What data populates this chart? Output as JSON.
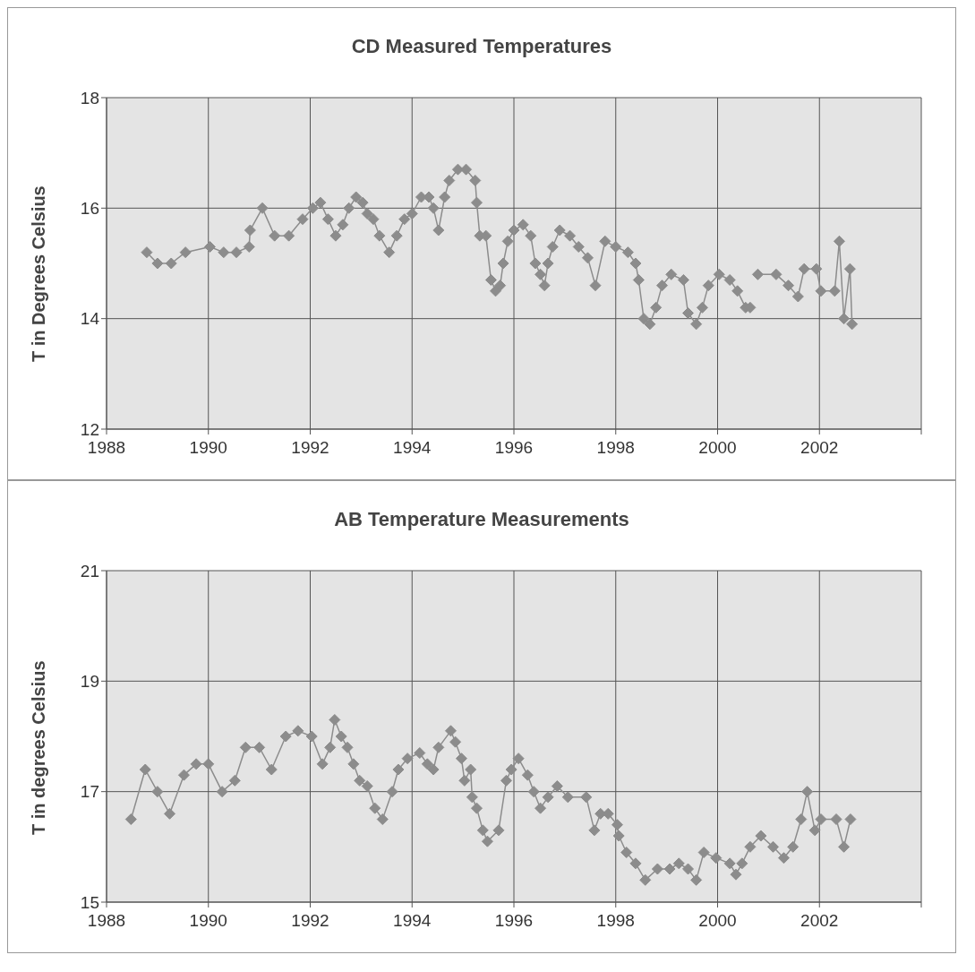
{
  "chart_data": [
    {
      "type": "line",
      "title": "CD Measured Temperatures",
      "ylabel": "T in Degrees Celsius",
      "x": [
        1988.79,
        1989.0,
        1989.27,
        1989.55,
        1990.03,
        1990.3,
        1990.55,
        1990.8,
        1990.82,
        1991.06,
        1991.3,
        1991.58,
        1991.85,
        1992.05,
        1992.2,
        1992.35,
        1992.5,
        1992.64,
        1992.76,
        1992.9,
        1993.03,
        1993.12,
        1993.24,
        1993.36,
        1993.55,
        1993.7,
        1993.85,
        1994.0,
        1994.18,
        1994.33,
        1994.42,
        1994.52,
        1994.64,
        1994.73,
        1994.9,
        1995.06,
        1995.24,
        1995.27,
        1995.33,
        1995.45,
        1995.55,
        1995.64,
        1995.73,
        1995.79,
        1995.88,
        1996.0,
        1996.18,
        1996.33,
        1996.42,
        1996.52,
        1996.6,
        1996.67,
        1996.76,
        1996.9,
        1997.1,
        1997.27,
        1997.45,
        1997.6,
        1997.79,
        1998.0,
        1998.24,
        1998.39,
        1998.45,
        1998.55,
        1998.67,
        1998.79,
        1998.91,
        1999.09,
        1999.33,
        1999.42,
        1999.58,
        1999.7,
        1999.82,
        2000.03,
        2000.24,
        2000.39,
        2000.55,
        2000.64,
        2000.72,
        2000.79,
        2001.15,
        2001.39,
        2001.58,
        2001.7,
        2001.94,
        2002.03,
        2002.3,
        2002.39,
        2002.48,
        2002.6,
        2002.64
      ],
      "series": [
        {
          "color": "#8c8c8c",
          "values": [
            15.2,
            15.0,
            15.0,
            15.2,
            15.3,
            15.2,
            15.2,
            15.3,
            15.6,
            16.0,
            15.5,
            15.5,
            15.8,
            16.0,
            16.1,
            15.8,
            15.5,
            15.7,
            16.0,
            16.2,
            16.1,
            15.9,
            15.8,
            15.5,
            15.2,
            15.5,
            15.8,
            15.9,
            16.2,
            16.2,
            16.0,
            15.6,
            16.2,
            16.5,
            16.7,
            16.7,
            16.5,
            16.1,
            15.5,
            15.5,
            14.7,
            14.5,
            14.6,
            15.0,
            15.4,
            15.6,
            15.7,
            15.5,
            15.0,
            14.8,
            14.6,
            15.0,
            15.3,
            15.6,
            15.5,
            15.3,
            15.1,
            14.6,
            15.4,
            15.3,
            15.2,
            15.0,
            14.7,
            14.0,
            13.9,
            14.2,
            14.6,
            14.8,
            14.7,
            14.1,
            13.9,
            14.2,
            14.6,
            14.8,
            14.7,
            14.5,
            14.2,
            14.2,
            null,
            14.8,
            14.8,
            14.6,
            14.4,
            14.9,
            14.9,
            14.5,
            14.5,
            15.4,
            14.0,
            14.9,
            13.9
          ]
        }
      ],
      "xlim": [
        1988,
        2004
      ],
      "xticks": [
        1988,
        1990,
        1992,
        1994,
        1996,
        1998,
        2000,
        2002,
        {
          "value": 2004,
          "label": null
        }
      ],
      "ylim": [
        12,
        18
      ],
      "yticks": [
        12,
        14,
        16,
        18
      ],
      "grid": true,
      "marker": "diamond",
      "line_style": "solid"
    },
    {
      "type": "line",
      "title": "AB Temperature Measurements",
      "ylabel": "T in degrees Celsius",
      "x": [
        1988.48,
        1988.76,
        1989.0,
        1989.24,
        1989.52,
        1989.76,
        1990.0,
        1990.27,
        1990.52,
        1990.73,
        1991.0,
        1991.24,
        1991.52,
        1991.76,
        1992.03,
        1992.24,
        1992.39,
        1992.48,
        1992.61,
        1992.73,
        1992.85,
        1992.97,
        1993.12,
        1993.27,
        1993.42,
        1993.61,
        1993.73,
        1993.91,
        1994.15,
        1994.3,
        1994.42,
        1994.52,
        1994.76,
        1994.85,
        1994.97,
        1995.03,
        1995.15,
        1995.18,
        1995.27,
        1995.39,
        1995.48,
        1995.7,
        1995.85,
        1995.95,
        1996.09,
        1996.27,
        1996.39,
        1996.52,
        1996.67,
        1996.85,
        1997.06,
        1997.42,
        1997.58,
        1997.7,
        1997.85,
        1998.03,
        1998.06,
        1998.21,
        1998.39,
        1998.58,
        1998.82,
        1999.06,
        1999.24,
        1999.42,
        1999.58,
        1999.73,
        1999.97,
        2000.24,
        2000.36,
        2000.48,
        2000.64,
        2000.85,
        2001.09,
        2001.3,
        2001.48,
        2001.64,
        2001.76,
        2001.91,
        2002.03,
        2002.33,
        2002.48,
        2002.61
      ],
      "series": [
        {
          "color": "#8c8c8c",
          "values": [
            16.5,
            17.4,
            17.0,
            16.6,
            17.3,
            17.5,
            17.5,
            17.0,
            17.2,
            17.8,
            17.8,
            17.4,
            18.0,
            18.1,
            18.0,
            17.5,
            17.8,
            18.3,
            18.0,
            17.8,
            17.5,
            17.2,
            17.1,
            16.7,
            16.5,
            17.0,
            17.4,
            17.6,
            17.7,
            17.5,
            17.4,
            17.8,
            18.1,
            17.9,
            17.6,
            17.2,
            17.4,
            16.9,
            16.7,
            16.3,
            16.1,
            16.3,
            17.2,
            17.4,
            17.6,
            17.3,
            17.0,
            16.7,
            16.9,
            17.1,
            16.9,
            16.9,
            16.3,
            16.6,
            16.6,
            16.4,
            16.2,
            15.9,
            15.7,
            15.4,
            15.6,
            15.6,
            15.7,
            15.6,
            15.4,
            15.9,
            15.8,
            15.7,
            15.5,
            15.7,
            16.0,
            16.2,
            16.0,
            15.8,
            16.0,
            16.5,
            17.0,
            16.3,
            16.5,
            16.5,
            16.0,
            16.5
          ]
        }
      ],
      "xlim": [
        1988,
        2004
      ],
      "xticks": [
        1988,
        1990,
        1992,
        1994,
        1996,
        1998,
        2000,
        2002,
        {
          "value": 2004,
          "label": null
        }
      ],
      "ylim": [
        15,
        21
      ],
      "yticks": [
        15,
        17,
        19,
        21
      ],
      "grid": true,
      "marker": "diamond",
      "line_style": "solid"
    }
  ]
}
